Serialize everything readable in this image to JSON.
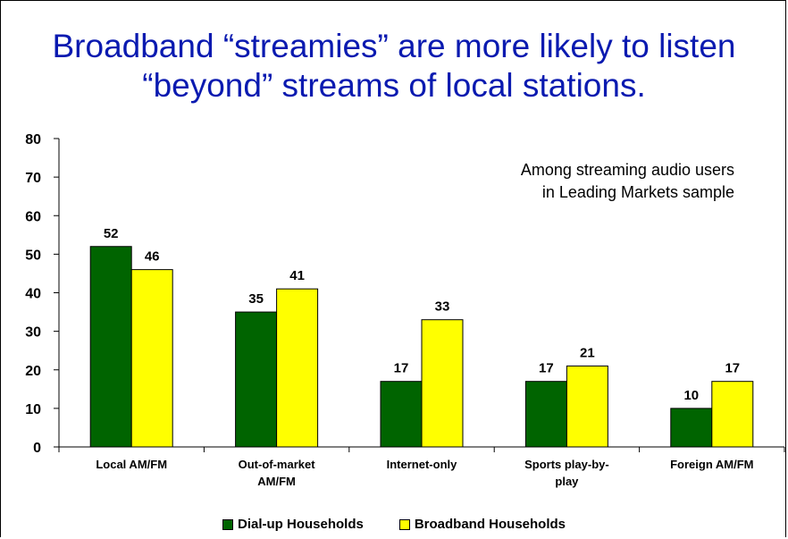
{
  "title": {
    "line1": "Broadband “streamies” are more likely to listen",
    "line2": "“beyond” streams of local stations."
  },
  "annotation": {
    "line1": "Among streaming audio users",
    "line2": "in Leading Markets sample"
  },
  "colors": {
    "dialup": "#006400",
    "broadband": "#ffff00",
    "title": "#0a1ab0"
  },
  "chart_data": {
    "type": "bar",
    "title": "Broadband “streamies” are more likely to listen “beyond” streams of local stations.",
    "categories": [
      [
        "Local AM/FM"
      ],
      [
        "Out-of-market",
        "AM/FM"
      ],
      [
        "Internet-only"
      ],
      [
        "Sports play-by-",
        "play"
      ],
      [
        "Foreign AM/FM"
      ]
    ],
    "series": [
      {
        "name": "Dial-up Households",
        "values": [
          52,
          35,
          17,
          17,
          10
        ],
        "color": "#006400"
      },
      {
        "name": "Broadband Households",
        "values": [
          46,
          41,
          33,
          21,
          17
        ],
        "color": "#ffff00"
      }
    ],
    "ylim": [
      0,
      80
    ],
    "yticks": [
      0,
      10,
      20,
      30,
      40,
      50,
      60,
      70,
      80
    ],
    "grid": false,
    "legend_position": "bottom"
  }
}
